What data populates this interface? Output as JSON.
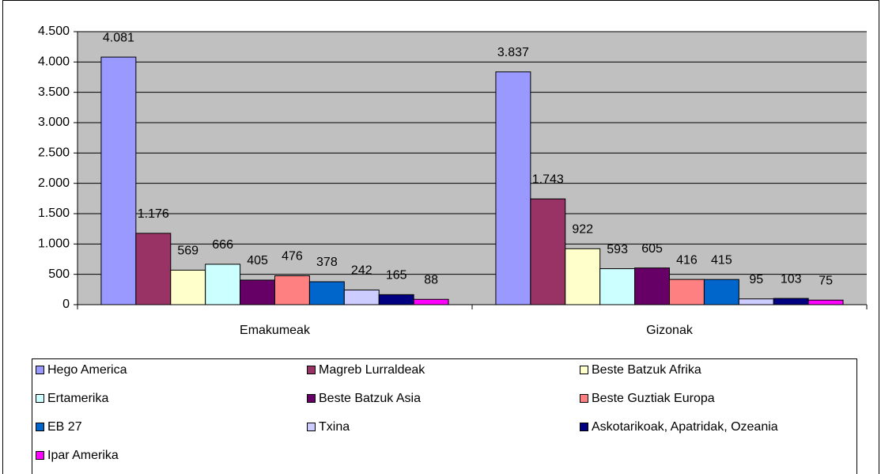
{
  "chart_data": {
    "type": "bar",
    "categories": [
      "Emakumeak",
      "Gizonak"
    ],
    "series": [
      {
        "name": "Hego America",
        "color": "#9999ff",
        "values": [
          4081,
          3837
        ],
        "value_labels": [
          "4.081",
          "3.837"
        ]
      },
      {
        "name": "Magreb Lurraldeak",
        "color": "#993366",
        "values": [
          1176,
          1743
        ],
        "value_labels": [
          "1.176",
          "1.743"
        ]
      },
      {
        "name": "Beste Batzuk Afrika",
        "color": "#ffffcc",
        "values": [
          569,
          922
        ],
        "value_labels": [
          "569",
          "922"
        ]
      },
      {
        "name": "Ertamerika",
        "color": "#ccffff",
        "values": [
          666,
          593
        ],
        "value_labels": [
          "666",
          "593"
        ]
      },
      {
        "name": "Beste Batzuk Asia",
        "color": "#660066",
        "values": [
          405,
          605
        ],
        "value_labels": [
          "405",
          "605"
        ]
      },
      {
        "name": "Beste Guztiak Europa",
        "color": "#ff8080",
        "values": [
          476,
          416
        ],
        "value_labels": [
          "476",
          "416"
        ]
      },
      {
        "name": "EB 27",
        "color": "#0066cc",
        "values": [
          378,
          415
        ],
        "value_labels": [
          "378",
          "415"
        ]
      },
      {
        "name": "Txina",
        "color": "#ccccff",
        "values": [
          242,
          95
        ],
        "value_labels": [
          "242",
          "95"
        ]
      },
      {
        "name": "Askotarikoak, Apatridak, Ozeania",
        "color": "#000080",
        "values": [
          165,
          103
        ],
        "value_labels": [
          "165",
          "103"
        ]
      },
      {
        "name": "Ipar Amerika",
        "color": "#ff00ff",
        "values": [
          88,
          75
        ],
        "value_labels": [
          "88",
          "75"
        ]
      }
    ],
    "ylim": [
      0,
      4500
    ],
    "yticks": [
      0,
      500,
      {
        "value": 1000,
        "label": "1.000"
      },
      {
        "value": 1500,
        "label": "1.500"
      },
      {
        "value": 2000,
        "label": "2.000"
      },
      {
        "value": 2500,
        "label": "2.500"
      },
      {
        "value": 3000,
        "label": "3.000"
      },
      {
        "value": 3500,
        "label": "3.500"
      },
      {
        "value": 4000,
        "label": "4.000"
      },
      {
        "value": 4500,
        "label": "4.500"
      }
    ],
    "grid": true,
    "legend": "bottom",
    "background": "#c0c0c0"
  }
}
